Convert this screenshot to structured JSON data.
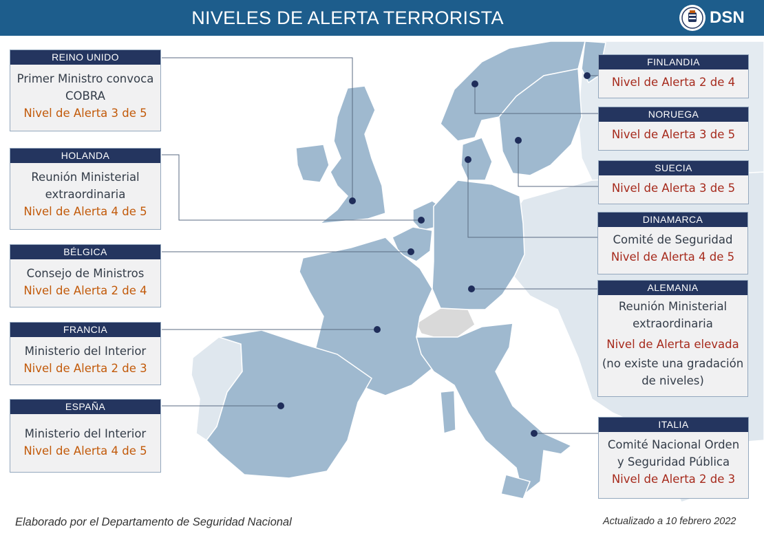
{
  "header": {
    "title": "NIVELES DE ALERTA TERRORISTA",
    "logo_text": "DSN"
  },
  "countries": [
    {
      "id": "reino-unido",
      "name": "REINO UNIDO",
      "lines": [
        "Primer Ministro convoca",
        "COBRA"
      ],
      "level": "Nivel de Alerta 3 de 5"
    },
    {
      "id": "holanda",
      "name": "HOLANDA",
      "lines": [
        "Reunión Ministerial",
        "extraordinaria"
      ],
      "level": "Nivel de Alerta 4 de 5"
    },
    {
      "id": "belgica",
      "name": "BÉLGICA",
      "lines": [
        "Consejo de Ministros"
      ],
      "level": "Nivel de Alerta 2 de 4"
    },
    {
      "id": "francia",
      "name": "FRANCIA",
      "lines": [
        "Ministerio del Interior"
      ],
      "level": "Nivel de Alerta 2 de 3"
    },
    {
      "id": "espana",
      "name": "ESPAÑA",
      "lines": [
        "Ministerio del Interior"
      ],
      "level": "Nivel de Alerta 4 de 5"
    },
    {
      "id": "finlandia",
      "name": "FINLANDIA",
      "lines": [],
      "level": "Nivel de Alerta 2 de 4"
    },
    {
      "id": "noruega",
      "name": "NORUEGA",
      "lines": [],
      "level": "Nivel de Alerta 3 de 5"
    },
    {
      "id": "suecia",
      "name": "SUECIA",
      "lines": [],
      "level": "Nivel de Alerta 3 de 5"
    },
    {
      "id": "dinamarca",
      "name": "DINAMARCA",
      "lines": [
        "Comité de Seguridad"
      ],
      "level": "Nivel de Alerta 4 de 5"
    },
    {
      "id": "alemania",
      "name": "ALEMANIA",
      "lines": [
        "Reunión Ministerial",
        "extraordinaria"
      ],
      "level": "Nivel de Alerta elevada",
      "extra": [
        "(no existe una gradación",
        "de niveles)"
      ]
    },
    {
      "id": "italia",
      "name": "ITALIA",
      "lines": [
        "Comité Nacional Orden",
        "y Seguridad Pública"
      ],
      "level": "Nivel de Alerta 2 de 3"
    }
  ],
  "footer": {
    "left": "Elaborado por el Departamento de Seguridad Nacional",
    "right": "Actualizado a 10 febrero 2022"
  },
  "colors": {
    "header": "#1d5d8c",
    "box_header": "#24355f",
    "level_orange": "#c25a0a",
    "level_red": "#a62a1c",
    "country_highlight": "#9fb9cf",
    "country_other": "#dfe7ee",
    "switzerland": "#d9d9d9",
    "sea": "#ffffff"
  }
}
